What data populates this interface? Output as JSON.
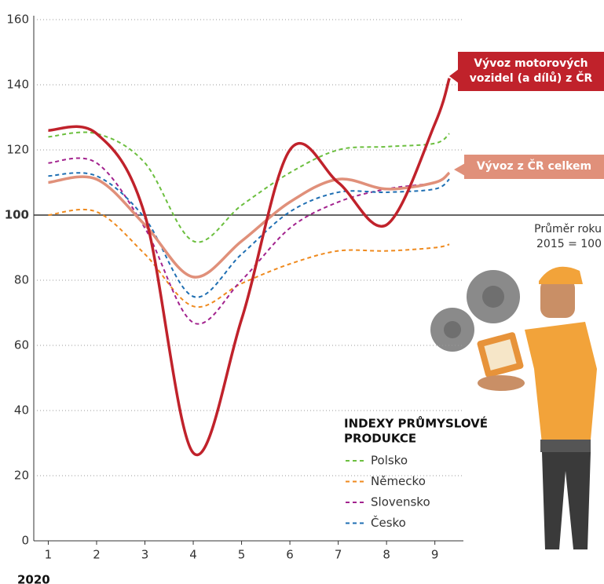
{
  "chart_data": {
    "type": "line",
    "xlabel": "2020",
    "x": [
      1,
      2,
      3,
      4,
      5,
      6,
      7,
      8,
      9,
      9.3
    ],
    "xlim": [
      0.7,
      12.5
    ],
    "xticks": [
      1,
      2,
      3,
      4,
      5,
      6,
      7,
      8,
      9
    ],
    "ylim": [
      0,
      160
    ],
    "yticks": [
      0,
      20,
      40,
      60,
      80,
      100,
      120,
      140,
      160
    ],
    "grid": true,
    "reference": {
      "value": 100,
      "label": [
        "Průměr roku",
        "2015 = 100"
      ]
    },
    "legend_title": [
      "INDEXY PRŮMYSLOVÉ",
      "PRODUKCE"
    ],
    "series": [
      {
        "name": "Polsko",
        "color": "#6cbf3f",
        "dashed": true,
        "values": [
          124,
          125,
          116,
          92,
          103,
          113,
          120,
          121,
          122,
          125
        ]
      },
      {
        "name": "Německo",
        "color": "#ef8a1e",
        "dashed": true,
        "values": [
          100,
          101,
          88,
          72,
          79,
          85,
          89,
          89,
          90,
          91
        ]
      },
      {
        "name": "Slovensko",
        "color": "#a3238e",
        "dashed": true,
        "values": [
          116,
          116,
          96,
          67,
          80,
          96,
          104,
          108,
          110,
          113
        ]
      },
      {
        "name": "Česko",
        "color": "#1f6fb3",
        "dashed": true,
        "values": [
          112,
          112,
          99,
          75,
          88,
          101,
          107,
          107,
          108,
          111
        ]
      },
      {
        "name": "Vývoz z ČR celkem",
        "color": "#e0907a",
        "dashed": false,
        "values": [
          110,
          111,
          97,
          81,
          92,
          104,
          111,
          108,
          110,
          113
        ]
      },
      {
        "name": "Vývoz motorových vozidel (a dílů) z ČR",
        "color": "#c0222b",
        "dashed": false,
        "values": [
          126,
          125,
          100,
          27,
          68,
          120,
          110,
          97,
          128,
          142
        ]
      }
    ]
  }
}
